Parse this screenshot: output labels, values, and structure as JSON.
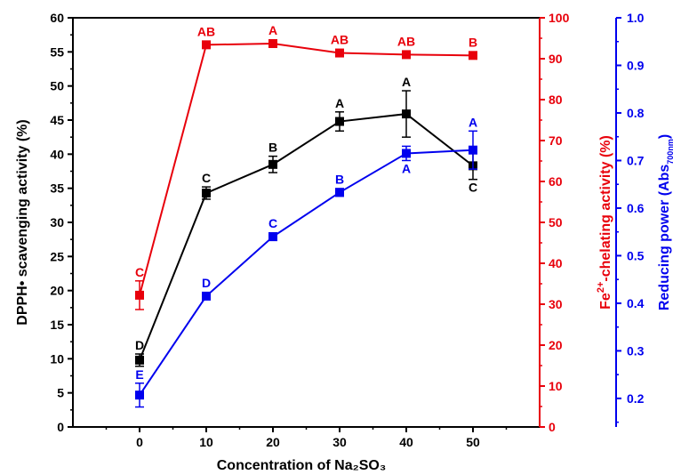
{
  "chart_data": {
    "type": "line",
    "xlabel": "Concentration of Na₂SO₃",
    "x": [
      0,
      10,
      20,
      30,
      40,
      50
    ],
    "xlim": [
      -10,
      60
    ],
    "xticks": [
      "0",
      "10",
      "20",
      "30",
      "40",
      "50"
    ],
    "axes": {
      "left": {
        "label": "DPPH• scavenging activity (%)",
        "ylim": [
          0,
          60
        ],
        "ticks": [
          "0",
          "5",
          "10",
          "15",
          "20",
          "25",
          "30",
          "35",
          "40",
          "45",
          "50",
          "55",
          "60"
        ],
        "color": "#000000"
      },
      "right1": {
        "label_main": "Fe",
        "label_sup": "2+",
        "label_rest": "-chelating activity (%)",
        "ylim": [
          0,
          100
        ],
        "ticks": [
          "0",
          "10",
          "20",
          "30",
          "40",
          "50",
          "60",
          "70",
          "80",
          "90",
          "100"
        ],
        "color": "#e8000b"
      },
      "right2": {
        "label_main": "Reducing power (Abs",
        "label_sub": "700nm",
        "label_end": ")",
        "ylim": [
          0.14,
          1.0
        ],
        "ticks": [
          "0.2",
          "0.3",
          "0.4",
          "0.5",
          "0.6",
          "0.7",
          "0.8",
          "0.9",
          "1.0"
        ],
        "color": "#0000ee"
      }
    },
    "series": [
      {
        "key": "dpph",
        "axis": "left",
        "color": "#000000",
        "values": [
          9.8,
          34.3,
          38.5,
          44.8,
          45.9,
          38.3
        ],
        "errors": [
          0.9,
          0.9,
          1.2,
          1.4,
          3.4,
          2.0
        ],
        "labels": [
          "D",
          "C",
          "B",
          "A",
          "A",
          "C"
        ],
        "label_pos": [
          "above",
          "above",
          "above",
          "above",
          "above",
          "below"
        ]
      },
      {
        "key": "fe",
        "axis": "right1",
        "color": "#e8000b",
        "values": [
          32.2,
          93.4,
          93.7,
          91.4,
          91.0,
          90.8
        ],
        "errors": [
          3.5,
          0.5,
          0.5,
          0.5,
          0.5,
          0.5
        ],
        "labels": [
          "C",
          "AB",
          "A",
          "AB",
          "AB",
          "B"
        ],
        "label_pos": [
          "above",
          "above",
          "above",
          "above",
          "above",
          "above"
        ]
      },
      {
        "key": "reducing",
        "axis": "right2",
        "color": "#0000ee",
        "values": [
          0.207,
          0.415,
          0.54,
          0.633,
          0.715,
          0.722
        ],
        "errors": [
          0.025,
          0.005,
          0.008,
          0.008,
          0.015,
          0.04
        ],
        "labels": [
          "E",
          "D",
          "C",
          "B",
          "A",
          "A"
        ],
        "label_pos": [
          "above",
          "above",
          "above",
          "above",
          "below",
          "above"
        ]
      }
    ]
  }
}
